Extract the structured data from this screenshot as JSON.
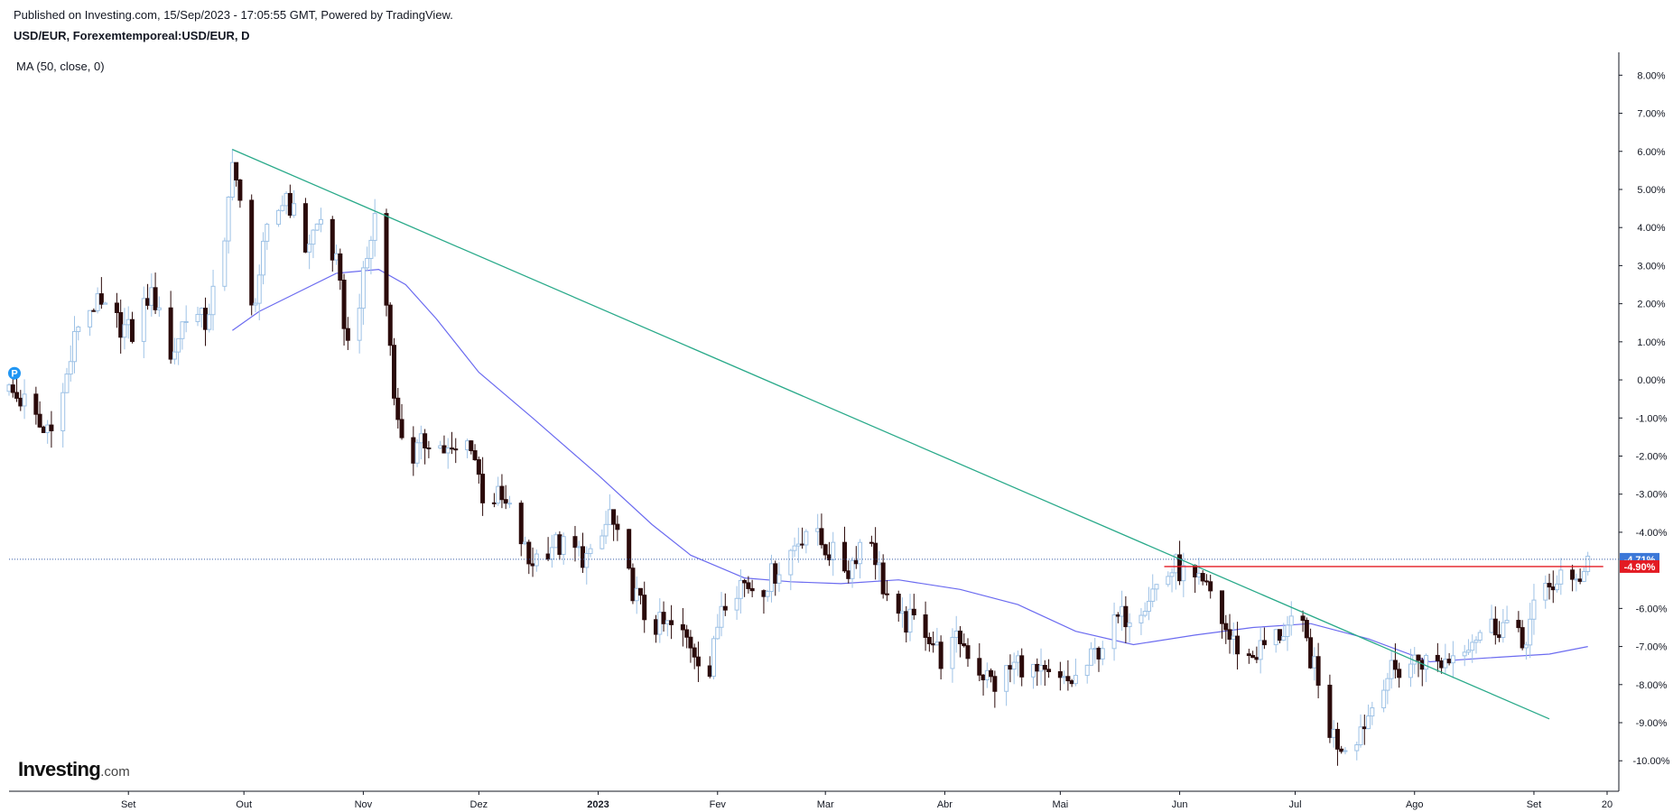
{
  "header": {
    "published": "Published on Investing.com, 15/Sep/2023 - 17:05:55 GMT, Powered by TradingView.",
    "symbol": "USD/EUR, Forexemtemporeal:USD/EUR, D"
  },
  "indicator_legend": "MA (50, close, 0)",
  "logo": {
    "main": "Investing",
    "suffix": ".com"
  },
  "badge": {
    "letter": "P",
    "color": "#2196f3"
  },
  "colors": {
    "up_candle_outline": "#9ec2e6",
    "down_candle": "#2b0a0a",
    "ma_line": "#6b6bf0",
    "trend_line": "#2aaa8a",
    "resistance_line": "#e31b23",
    "price_line": "#3a5fa8",
    "tag_current": "#3c78d8",
    "tag_level": "#e31b23"
  },
  "chart_data": {
    "type": "candlestick",
    "y_unit": "%",
    "ylim": [
      -10.8,
      8.6
    ],
    "y_ticks": [
      {
        "v": 8,
        "label": "8.00%"
      },
      {
        "v": 7,
        "label": "7.00%"
      },
      {
        "v": 6,
        "label": "6.00%"
      },
      {
        "v": 5,
        "label": "5.00%"
      },
      {
        "v": 4,
        "label": "4.00%"
      },
      {
        "v": 3,
        "label": "3.00%"
      },
      {
        "v": 2,
        "label": "2.00%"
      },
      {
        "v": 1,
        "label": "1.00%"
      },
      {
        "v": 0,
        "label": "0.00%"
      },
      {
        "v": -1,
        "label": "-1.00%"
      },
      {
        "v": -2,
        "label": "-2.00%"
      },
      {
        "v": -3,
        "label": "-3.00%"
      },
      {
        "v": -4,
        "label": "-4.00%"
      },
      {
        "v": -6,
        "label": "-6.00%"
      },
      {
        "v": -7,
        "label": "-7.00%"
      },
      {
        "v": -8,
        "label": "-8.00%"
      },
      {
        "v": -9,
        "label": "-9.00%"
      },
      {
        "v": -10,
        "label": "-10.00%"
      }
    ],
    "x_range": [
      "2022-08-01",
      "2023-09-20"
    ],
    "x_ticks": [
      {
        "date": "2022-09-01",
        "label": "Set"
      },
      {
        "date": "2022-10-01",
        "label": "Out"
      },
      {
        "date": "2022-11-01",
        "label": "Nov"
      },
      {
        "date": "2022-12-01",
        "label": "Dez"
      },
      {
        "date": "2023-01-01",
        "label": "2023",
        "bold": true
      },
      {
        "date": "2023-02-01",
        "label": "Fev"
      },
      {
        "date": "2023-03-01",
        "label": "Mar"
      },
      {
        "date": "2023-04-01",
        "label": "Abr"
      },
      {
        "date": "2023-05-01",
        "label": "Mai"
      },
      {
        "date": "2023-06-01",
        "label": "Jun"
      },
      {
        "date": "2023-07-01",
        "label": "Jul"
      },
      {
        "date": "2023-08-01",
        "label": "Ago"
      },
      {
        "date": "2023-09-01",
        "label": "Set"
      },
      {
        "date": "2023-09-20",
        "label": "20"
      }
    ],
    "close_path": [
      [
        "2022-08-01",
        -0.3
      ],
      [
        "2022-08-05",
        -0.6
      ],
      [
        "2022-08-10",
        -1.4
      ],
      [
        "2022-08-15",
        -0.4
      ],
      [
        "2022-08-19",
        1.5
      ],
      [
        "2022-08-23",
        2.0
      ],
      [
        "2022-08-28",
        1.6
      ],
      [
        "2022-09-02",
        1.2
      ],
      [
        "2022-09-06",
        2.2
      ],
      [
        "2022-09-09",
        2.0
      ],
      [
        "2022-09-12",
        0.5
      ],
      [
        "2022-09-16",
        1.8
      ],
      [
        "2022-09-21",
        1.5
      ],
      [
        "2022-09-26",
        3.4
      ],
      [
        "2022-09-28",
        6.0
      ],
      [
        "2022-09-30",
        4.5
      ],
      [
        "2022-10-03",
        1.8
      ],
      [
        "2022-10-07",
        3.8
      ],
      [
        "2022-10-12",
        4.9
      ],
      [
        "2022-10-17",
        3.5
      ],
      [
        "2022-10-21",
        4.2
      ],
      [
        "2022-10-25",
        3.0
      ],
      [
        "2022-10-28",
        0.9
      ],
      [
        "2022-11-01",
        2.6
      ],
      [
        "2022-11-04",
        4.3
      ],
      [
        "2022-11-07",
        2.0
      ],
      [
        "2022-11-10",
        -1.2
      ],
      [
        "2022-11-14",
        -2.0
      ],
      [
        "2022-11-18",
        -1.5
      ],
      [
        "2022-11-24",
        -2.0
      ],
      [
        "2022-11-29",
        -1.6
      ],
      [
        "2022-12-02",
        -3.0
      ],
      [
        "2022-12-06",
        -3.1
      ],
      [
        "2022-12-10",
        -3.6
      ],
      [
        "2022-12-14",
        -4.8
      ],
      [
        "2022-12-20",
        -4.3
      ],
      [
        "2022-12-26",
        -4.5
      ],
      [
        "2022-12-31",
        -4.8
      ],
      [
        "2023-01-04",
        -3.5
      ],
      [
        "2023-01-08",
        -5.0
      ],
      [
        "2023-01-14",
        -6.4
      ],
      [
        "2023-01-20",
        -6.5
      ],
      [
        "2023-01-25",
        -6.9
      ],
      [
        "2023-01-30",
        -7.7
      ],
      [
        "2023-02-02",
        -5.8
      ],
      [
        "2023-02-07",
        -5.3
      ],
      [
        "2023-02-12",
        -5.5
      ],
      [
        "2023-02-18",
        -4.8
      ],
      [
        "2023-02-24",
        -3.9
      ],
      [
        "2023-03-02",
        -4.5
      ],
      [
        "2023-03-07",
        -5.0
      ],
      [
        "2023-03-12",
        -3.8
      ],
      [
        "2023-03-16",
        -5.4
      ],
      [
        "2023-03-20",
        -6.4
      ],
      [
        "2023-03-26",
        -6.3
      ],
      [
        "2023-03-31",
        -7.3
      ],
      [
        "2023-04-05",
        -6.8
      ],
      [
        "2023-04-10",
        -7.6
      ],
      [
        "2023-04-14",
        -8.0
      ],
      [
        "2023-04-20",
        -7.4
      ],
      [
        "2023-04-26",
        -7.8
      ],
      [
        "2023-05-02",
        -8.0
      ],
      [
        "2023-05-06",
        -7.8
      ],
      [
        "2023-05-10",
        -7.2
      ],
      [
        "2023-05-16",
        -6.3
      ],
      [
        "2023-05-21",
        -6.0
      ],
      [
        "2023-05-26",
        -5.4
      ],
      [
        "2023-05-31",
        -4.9
      ],
      [
        "2023-06-04",
        -5.3
      ],
      [
        "2023-06-09",
        -5.6
      ],
      [
        "2023-06-14",
        -6.8
      ],
      [
        "2023-06-19",
        -7.3
      ],
      [
        "2023-06-24",
        -6.9
      ],
      [
        "2023-06-29",
        -6.5
      ],
      [
        "2023-07-03",
        -6.6
      ],
      [
        "2023-07-06",
        -7.6
      ],
      [
        "2023-07-09",
        -9.0
      ],
      [
        "2023-07-12",
        -9.5
      ],
      [
        "2023-07-15",
        -9.6
      ],
      [
        "2023-07-20",
        -8.8
      ],
      [
        "2023-07-24",
        -7.8
      ],
      [
        "2023-07-28",
        -7.6
      ],
      [
        "2023-08-02",
        -7.3
      ],
      [
        "2023-08-06",
        -7.5
      ],
      [
        "2023-08-10",
        -7.3
      ],
      [
        "2023-08-15",
        -6.8
      ],
      [
        "2023-08-20",
        -6.5
      ],
      [
        "2023-08-25",
        -6.4
      ],
      [
        "2023-08-29",
        -7.0
      ],
      [
        "2023-09-01",
        -6.0
      ],
      [
        "2023-09-05",
        -5.5
      ],
      [
        "2023-09-08",
        -5.1
      ],
      [
        "2023-09-11",
        -5.5
      ],
      [
        "2023-09-13",
        -5.1
      ],
      [
        "2023-09-15",
        -4.6
      ]
    ],
    "moving_average": {
      "label": "MA (50, close, 0)",
      "points": [
        [
          "2022-09-28",
          1.3
        ],
        [
          "2022-10-05",
          1.8
        ],
        [
          "2022-10-15",
          2.3
        ],
        [
          "2022-10-25",
          2.8
        ],
        [
          "2022-11-05",
          2.9
        ],
        [
          "2022-11-12",
          2.5
        ],
        [
          "2022-11-20",
          1.6
        ],
        [
          "2022-12-01",
          0.2
        ],
        [
          "2022-12-15",
          -1.0
        ],
        [
          "2023-01-01",
          -2.5
        ],
        [
          "2023-01-15",
          -3.8
        ],
        [
          "2023-01-25",
          -4.6
        ],
        [
          "2023-02-08",
          -5.2
        ],
        [
          "2023-02-20",
          -5.3
        ],
        [
          "2023-03-05",
          -5.35
        ],
        [
          "2023-03-20",
          -5.25
        ],
        [
          "2023-04-05",
          -5.5
        ],
        [
          "2023-04-20",
          -5.9
        ],
        [
          "2023-05-05",
          -6.6
        ],
        [
          "2023-05-20",
          -6.95
        ],
        [
          "2023-06-05",
          -6.7
        ],
        [
          "2023-06-20",
          -6.5
        ],
        [
          "2023-07-05",
          -6.4
        ],
        [
          "2023-07-20",
          -6.8
        ],
        [
          "2023-08-05",
          -7.4
        ],
        [
          "2023-08-20",
          -7.3
        ],
        [
          "2023-09-05",
          -7.2
        ],
        [
          "2023-09-15",
          -7.0
        ]
      ]
    },
    "trend_line": {
      "start": [
        "2022-09-28",
        6.05
      ],
      "end": [
        "2023-09-05",
        -8.9
      ]
    },
    "resistance_line": {
      "start": [
        "2023-05-28",
        -4.9
      ],
      "end": [
        "2023-09-19",
        -4.9
      ]
    },
    "current_price": {
      "value": -4.71,
      "label": "-4.71%"
    },
    "level_tag": {
      "value": -4.9,
      "label": "-4.90%"
    }
  }
}
